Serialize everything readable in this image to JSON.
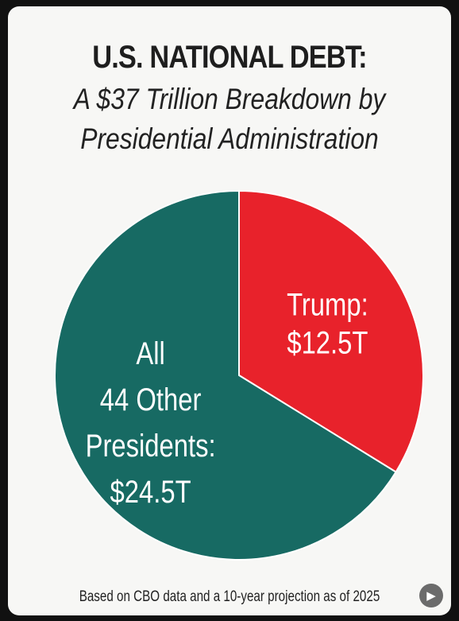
{
  "chart_data": {
    "type": "pie",
    "title": "U.S. NATIONAL DEBT:",
    "subtitle_lines": [
      "A $37 Trillion Breakdown by",
      "Presidential Administration"
    ],
    "unit": "trillion USD",
    "total": 37,
    "series": [
      {
        "name": "Trump",
        "value": 12.5,
        "label_lines": [
          "Trump:",
          "$12.5T"
        ],
        "color": "#e8222b"
      },
      {
        "name": "All 44 Other Presidents",
        "value": 24.5,
        "label_lines": [
          "All",
          "44 Other",
          "Presidents:",
          "$24.5T"
        ],
        "color": "#176a63"
      }
    ],
    "footnote": "Based on CBO data and a 10-year projection as of 2025"
  },
  "badge": {
    "icon": "play-icon",
    "glyph": "▶"
  },
  "colors": {
    "background": "#f7f7f5",
    "slice_border": "#ffffff",
    "label_text": "#ffffff"
  }
}
